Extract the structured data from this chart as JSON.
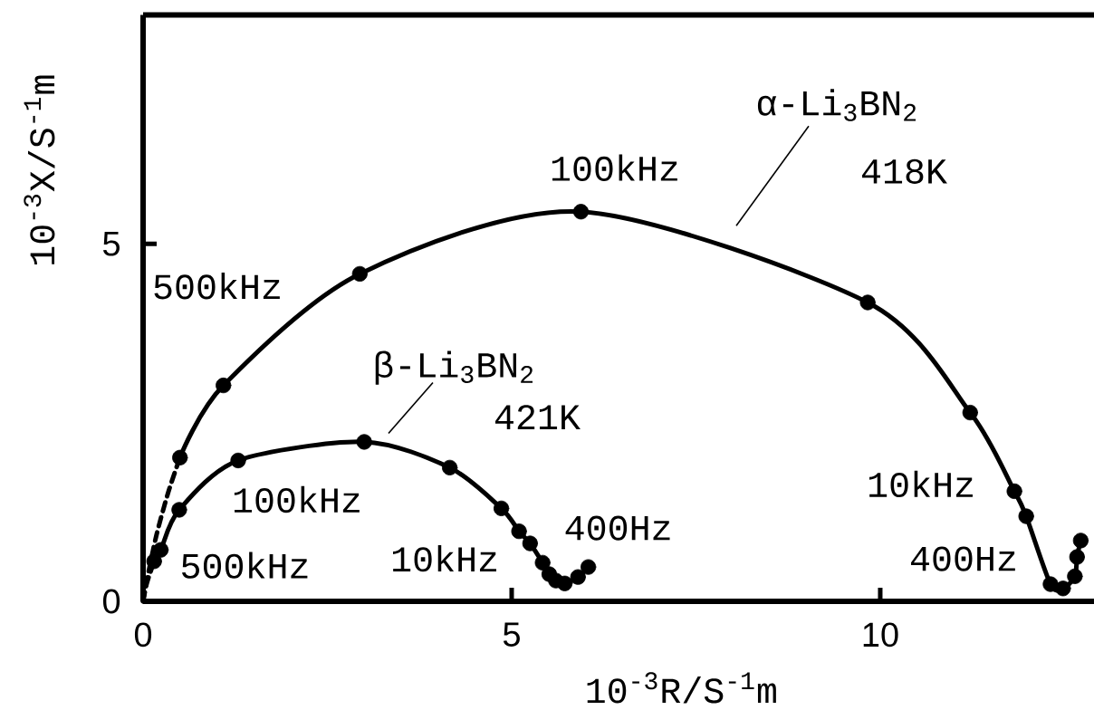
{
  "chart_data": {
    "type": "line",
    "xlabel": "10$^{-3}$R/S$^{-1}$m",
    "ylabel": "10$^{-3}$X/S$^{-1}$m",
    "xlim": [
      0,
      12.9
    ],
    "ylim": [
      0,
      8.2
    ],
    "xticks": [
      0,
      5,
      10
    ],
    "yticks": [
      0,
      5
    ],
    "marker": "circle",
    "line_style": "solid",
    "series": [
      {
        "name": "α-Li$_{3}$BN$_{2}$",
        "color": "#000000",
        "x": [
          0.5,
          1.09,
          2.94,
          5.94,
          9.83,
          11.22,
          11.82,
          11.98,
          12.31,
          12.48,
          12.64,
          12.67,
          12.72
        ],
        "values": [
          2.01,
          3.02,
          4.58,
          5.45,
          4.18,
          2.64,
          1.54,
          1.19,
          0.24,
          0.18,
          0.35,
          0.62,
          0.85
        ]
      },
      {
        "color": "#000000",
        "line_style": "dashed",
        "marker": "none",
        "x": [
          0,
          0.06,
          0.18,
          0.34,
          0.5
        ],
        "values": [
          0,
          0.34,
          0.92,
          1.52,
          2.01
        ]
      },
      {
        "name": "β-Li$_{3}$BN$_{2}$",
        "color": "#000000",
        "x": [
          0.15,
          0.24,
          0.49,
          1.29,
          3.0,
          4.16,
          4.86,
          5.1,
          5.25,
          5.42,
          5.51,
          5.6,
          5.72,
          5.9,
          6.04
        ],
        "values": [
          0.56,
          0.72,
          1.28,
          1.97,
          2.23,
          1.87,
          1.3,
          0.98,
          0.81,
          0.54,
          0.38,
          0.29,
          0.25,
          0.34,
          0.48
        ]
      },
      {
        "color": "#000000",
        "line_style": "dashed",
        "marker": "none",
        "x": [
          0,
          0.05,
          0.15
        ],
        "values": [
          0,
          0.25,
          0.56
        ]
      }
    ],
    "annotations": [
      {
        "text": "100kHz",
        "x": 5.94,
        "y": 5.45
      },
      {
        "text": "500kHz",
        "x": 1.09,
        "y": 3.02
      },
      {
        "text": "10kHz",
        "x": 11.82,
        "y": 1.54
      },
      {
        "text": "400Hz",
        "x": 12.31,
        "y": 0.24
      },
      {
        "text": "100kHz",
        "x": 1.29,
        "y": 1.97
      },
      {
        "text": "500kHz",
        "x": 0.24,
        "y": 0.72
      },
      {
        "text": "10kHz",
        "x": 5.1,
        "y": 0.98
      },
      {
        "text": "400Hz",
        "x": 6.04,
        "y": 0.48
      },
      "418K",
      "421K"
    ]
  }
}
